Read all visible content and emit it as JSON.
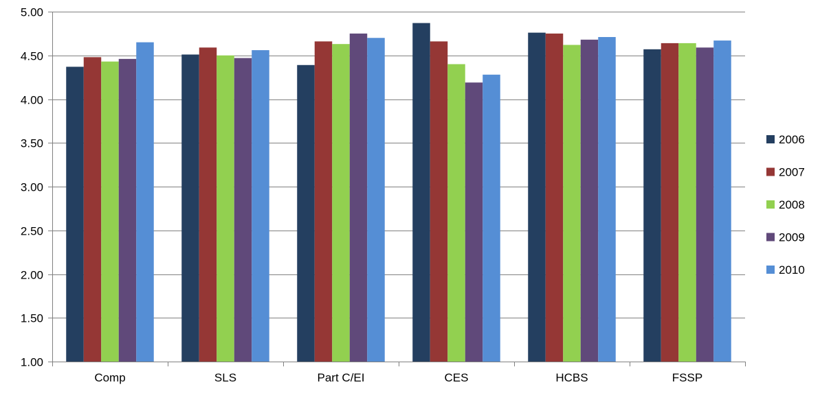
{
  "chart_data": {
    "type": "bar",
    "categories": [
      "Comp",
      "SLS",
      "Part C/EI",
      "CES",
      "HCBS",
      "FSSP"
    ],
    "series": [
      {
        "name": "2006",
        "color": "#243F60",
        "values": [
          4.37,
          4.51,
          4.39,
          4.87,
          4.76,
          4.57
        ]
      },
      {
        "name": "2007",
        "color": "#953735",
        "values": [
          4.48,
          4.59,
          4.66,
          4.66,
          4.75,
          4.64
        ]
      },
      {
        "name": "2008",
        "color": "#92D050",
        "values": [
          4.43,
          4.5,
          4.63,
          4.4,
          4.62,
          4.64
        ]
      },
      {
        "name": "2009",
        "color": "#60497A",
        "values": [
          4.46,
          4.47,
          4.75,
          4.19,
          4.68,
          4.59
        ]
      },
      {
        "name": "2010",
        "color": "#558ED5",
        "values": [
          4.65,
          4.56,
          4.7,
          4.28,
          4.71,
          4.67
        ]
      }
    ],
    "ylim": [
      1.0,
      5.0
    ],
    "yticks": [
      "1.00",
      "1.50",
      "2.00",
      "2.50",
      "3.00",
      "3.50",
      "4.00",
      "4.50",
      "5.00"
    ],
    "title": "",
    "xlabel": "",
    "ylabel": "",
    "grid": true,
    "legend_position": "right"
  }
}
